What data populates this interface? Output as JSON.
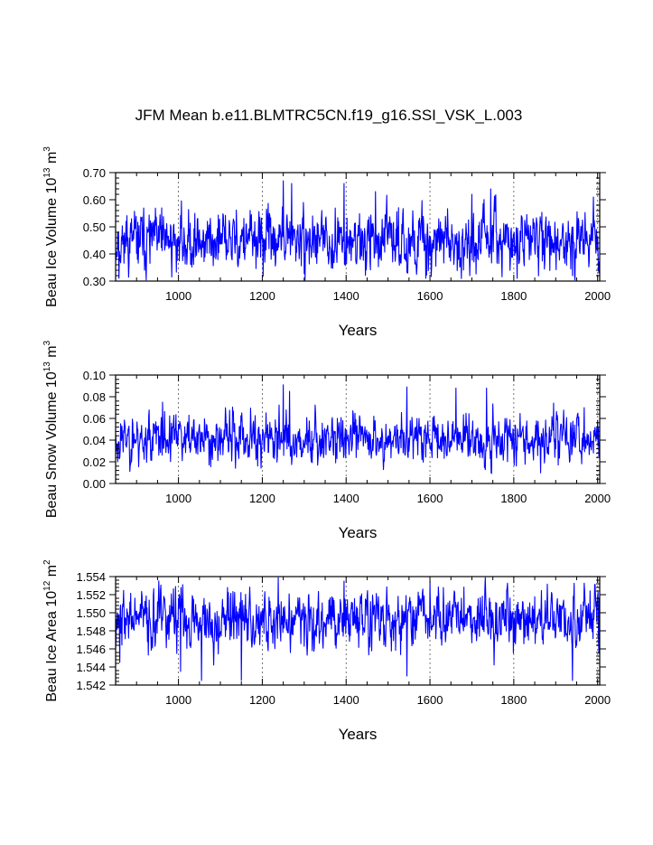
{
  "title": "JFM Mean b.e11.BLMTRC5CN.f19_g16.SSI_VSK_L.003",
  "series_color": "#0000ff",
  "chart_data": [
    {
      "id": "ice-volume",
      "type": "line",
      "xlabel": "Years",
      "ylabel": {
        "main": "Beau Ice Volume 10",
        "exp": "13",
        "unit": " m",
        "unit_exp": "3"
      },
      "xlim": [
        850,
        2005
      ],
      "ylim": [
        0.3,
        0.7
      ],
      "xticks": [
        1000,
        1200,
        1400,
        1600,
        1800,
        2000
      ],
      "xtick_labels": [
        "1000",
        "1200",
        "1400",
        "1600",
        "1800",
        "2000"
      ],
      "yticks": [
        0.3,
        0.4,
        0.5,
        0.6,
        0.7
      ],
      "ytick_labels": [
        "0.30",
        "0.40",
        "0.50",
        "0.60",
        "0.70"
      ],
      "x_start": 850,
      "x_end": 2005,
      "mean": 0.45,
      "std": 0.055,
      "seed": 11,
      "anchors": [
        [
          853,
          0.39
        ],
        [
          858,
          0.31
        ],
        [
          875,
          0.52
        ],
        [
          960,
          0.57
        ],
        [
          1250,
          0.67
        ],
        [
          1270,
          0.66
        ],
        [
          1395,
          0.66
        ],
        [
          1470,
          0.63
        ],
        [
          1590,
          0.31
        ],
        [
          1700,
          0.62
        ],
        [
          1745,
          0.64
        ],
        [
          1808,
          0.31
        ],
        [
          1940,
          0.32
        ],
        [
          1990,
          0.61
        ],
        [
          2003,
          0.33
        ]
      ]
    },
    {
      "id": "snow-volume",
      "type": "line",
      "xlabel": "Years",
      "ylabel": {
        "main": "Beau Snow Volume 10",
        "exp": "13",
        "unit": " m",
        "unit_exp": "3"
      },
      "xlim": [
        850,
        2005
      ],
      "ylim": [
        0.0,
        0.1
      ],
      "xticks": [
        1000,
        1200,
        1400,
        1600,
        1800,
        2000
      ],
      "xtick_labels": [
        "1000",
        "1200",
        "1400",
        "1600",
        "1800",
        "2000"
      ],
      "yticks": [
        0.0,
        0.02,
        0.04,
        0.06,
        0.08,
        0.1
      ],
      "ytick_labels": [
        "0.00",
        "0.02",
        "0.04",
        "0.06",
        "0.08",
        "0.10"
      ],
      "x_start": 850,
      "x_end": 2005,
      "mean": 0.041,
      "std": 0.011,
      "seed": 23,
      "anchors": [
        [
          855,
          0.02
        ],
        [
          962,
          0.075
        ],
        [
          1250,
          0.091
        ],
        [
          1265,
          0.085
        ],
        [
          1545,
          0.089
        ],
        [
          1662,
          0.088
        ],
        [
          1735,
          0.088
        ],
        [
          1968,
          0.07
        ],
        [
          2003,
          0.025
        ]
      ]
    },
    {
      "id": "ice-area",
      "type": "line",
      "xlabel": "Years",
      "ylabel": {
        "main": "Beau Ice Area 10",
        "exp": "12",
        "unit": " m",
        "unit_exp": "2"
      },
      "xlim": [
        850,
        2005
      ],
      "ylim": [
        1.542,
        1.554
      ],
      "xticks": [
        1000,
        1200,
        1400,
        1600,
        1800,
        2000
      ],
      "xtick_labels": [
        "1000",
        "1200",
        "1400",
        "1600",
        "1800",
        "2000"
      ],
      "yticks": [
        1.542,
        1.544,
        1.546,
        1.548,
        1.55,
        1.552,
        1.554
      ],
      "ytick_labels": [
        "1.542",
        "1.544",
        "1.546",
        "1.548",
        "1.550",
        "1.552",
        "1.554"
      ],
      "x_start": 850,
      "x_end": 2005,
      "mean": 1.5493,
      "std": 0.0016,
      "seed": 37,
      "anchors": [
        [
          860,
          1.5445
        ],
        [
          1005,
          1.5435
        ],
        [
          1055,
          1.5425
        ],
        [
          1150,
          1.5425
        ],
        [
          1395,
          1.5535
        ],
        [
          1545,
          1.543
        ],
        [
          1600,
          1.5535
        ],
        [
          1940,
          1.5425
        ],
        [
          2003,
          1.5455
        ]
      ]
    }
  ]
}
